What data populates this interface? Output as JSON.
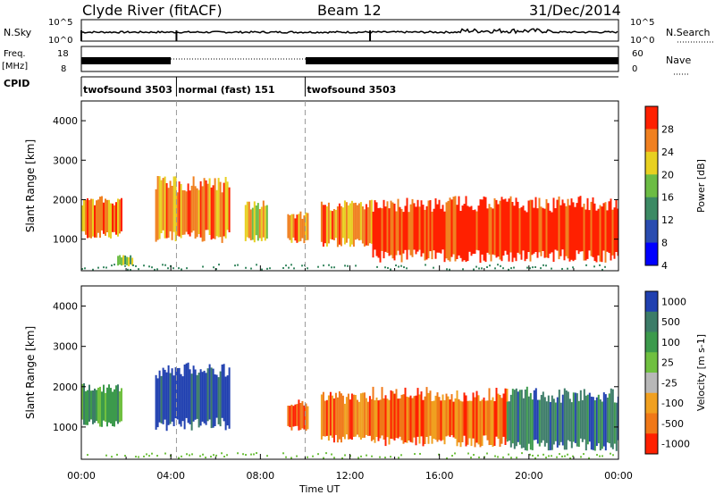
{
  "header": {
    "title": "Clyde River (fitACF)",
    "beam": "Beam 12",
    "date": "31/Dec/2014"
  },
  "summary_panels": {
    "nsky_label": "N.Sky",
    "nsky_ticks": [
      "10^5",
      "10^0"
    ],
    "nsearch_label": "N.Search",
    "freq_label_top": "Freq.",
    "freq_label_unit": "[MHz]",
    "freq_ticks": [
      "18",
      "8"
    ],
    "nave_ticks": [
      "60",
      "0"
    ],
    "nave_label": "Nave",
    "cpid_label": "CPID",
    "cpid_segments": [
      {
        "label": "twofsound 3503",
        "start_hour": 0,
        "end_hour": 4.25
      },
      {
        "label": "normal (fast) 151",
        "start_hour": 4.25,
        "end_hour": 10.0
      },
      {
        "label": "twofsound 3503",
        "start_hour": 10.0,
        "end_hour": 24
      }
    ]
  },
  "chart_data": [
    {
      "type": "heatmap",
      "name": "power-panel",
      "ylabel": "Slant Range [km]",
      "xlim": [
        0,
        24
      ],
      "ylim": [
        200,
        4500
      ],
      "yticks": [
        "1000",
        "2000",
        "3000",
        "4000"
      ],
      "colorbar": {
        "label": "Power [dB]",
        "ticks": [
          "4",
          "8",
          "12",
          "16",
          "20",
          "24",
          "28"
        ],
        "colors": [
          "#0000ff",
          "#2a4cb0",
          "#3c8a64",
          "#6cbc44",
          "#e8d020",
          "#f08020",
          "#ff2000"
        ]
      },
      "echo_regions": [
        {
          "x": [
            0,
            1.8
          ],
          "y": [
            1000,
            2100
          ],
          "level": 5
        },
        {
          "x": [
            1.6,
            2.3
          ],
          "y": [
            300,
            600
          ],
          "level": 3
        },
        {
          "x": [
            3.3,
            6.6
          ],
          "y": [
            900,
            2600
          ],
          "level": 5
        },
        {
          "x": [
            7.3,
            8.3
          ],
          "y": [
            900,
            2000
          ],
          "level": 4
        },
        {
          "x": [
            9.2,
            10.1
          ],
          "y": [
            900,
            1700
          ],
          "level": 5
        },
        {
          "x": [
            10.7,
            13.0
          ],
          "y": [
            800,
            2000
          ],
          "level": 5
        },
        {
          "x": [
            13.0,
            24
          ],
          "y": [
            400,
            2100
          ],
          "level": 6
        }
      ]
    },
    {
      "type": "heatmap",
      "name": "velocity-panel",
      "xlabel": "Time UT",
      "ylabel": "Slant Range [km]",
      "xlim": [
        0,
        24
      ],
      "ylim": [
        200,
        4500
      ],
      "xticks": [
        "00:00",
        "04:00",
        "08:00",
        "12:00",
        "16:00",
        "20:00",
        "00:00"
      ],
      "yticks": [
        "1000",
        "2000",
        "3000",
        "4000"
      ],
      "colorbar": {
        "label": "Velocity [m s-1]",
        "ticks": [
          "1000",
          "500",
          "100",
          "25",
          "-25",
          "-100",
          "-500",
          "-1000"
        ],
        "colors": [
          "#2040b0",
          "#3c7c68",
          "#3c9a4c",
          "#70c040",
          "#b8b8b8",
          "#f0a020",
          "#f07818",
          "#ff2000"
        ]
      },
      "echo_regions": [
        {
          "x": [
            0,
            1.8
          ],
          "y": [
            1000,
            2100
          ],
          "level": 2
        },
        {
          "x": [
            3.3,
            6.6
          ],
          "y": [
            900,
            2600
          ],
          "level": 0
        },
        {
          "x": [
            9.2,
            10.1
          ],
          "y": [
            900,
            1700
          ],
          "level": 6
        },
        {
          "x": [
            10.7,
            13.0
          ],
          "y": [
            600,
            1900
          ],
          "level": 6
        },
        {
          "x": [
            13.0,
            19.0
          ],
          "y": [
            500,
            2000
          ],
          "level": 6
        },
        {
          "x": [
            19.0,
            24
          ],
          "y": [
            400,
            2000
          ],
          "level": 1
        }
      ]
    }
  ]
}
